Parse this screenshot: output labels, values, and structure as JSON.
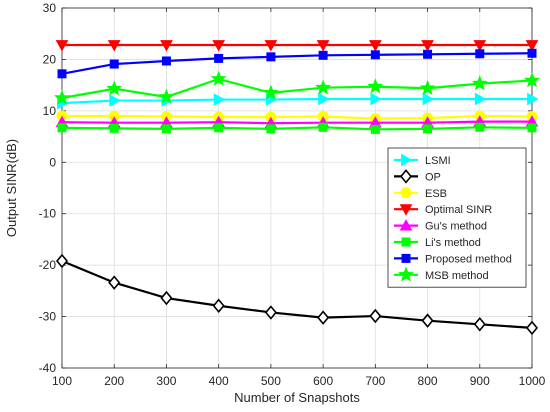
{
  "chart_data": {
    "type": "line",
    "title": "",
    "xlabel": "Number of Snapshots",
    "ylabel": "Output SINR(dB)",
    "x": [
      100,
      200,
      300,
      400,
      500,
      600,
      700,
      800,
      900,
      1000
    ],
    "xlim": [
      100,
      1000
    ],
    "ylim": [
      -40,
      30
    ],
    "xticks": [
      "100",
      "200",
      "300",
      "400",
      "500",
      "600",
      "700",
      "800",
      "900",
      "1000"
    ],
    "yticks": [
      "-40",
      "-30",
      "-20",
      "-10",
      "0",
      "10",
      "20",
      "30"
    ],
    "grid": true,
    "legend_position": "right",
    "series": [
      {
        "name": "LSMI",
        "color": "#00ffff",
        "marker": "triangle-right",
        "values": [
          11.5,
          12.0,
          12.0,
          12.2,
          12.2,
          12.3,
          12.3,
          12.3,
          12.3,
          12.3
        ]
      },
      {
        "name": "OP",
        "color": "#000000",
        "marker": "diamond",
        "values": [
          -19.2,
          -23.4,
          -26.4,
          -27.9,
          -29.2,
          -30.2,
          -29.9,
          -30.8,
          -31.5,
          -32.2
        ]
      },
      {
        "name": "ESB",
        "color": "#ffff00",
        "marker": "circle",
        "values": [
          9.0,
          9.0,
          8.9,
          8.8,
          8.8,
          8.9,
          8.5,
          8.6,
          9.0,
          8.9
        ]
      },
      {
        "name": "Optimal SINR",
        "color": "#ff0000",
        "marker": "triangle-down",
        "values": [
          22.8,
          22.8,
          22.8,
          22.8,
          22.8,
          22.8,
          22.8,
          22.8,
          22.8,
          22.8
        ]
      },
      {
        "name": "Gu's method",
        "color": "#ff00ff",
        "marker": "triangle-up",
        "values": [
          7.8,
          7.7,
          7.7,
          7.8,
          7.6,
          7.7,
          7.7,
          7.7,
          7.9,
          7.9
        ]
      },
      {
        "name": "Li's method",
        "color": "#00ff00",
        "marker": "square",
        "values": [
          6.7,
          6.6,
          6.5,
          6.7,
          6.5,
          6.8,
          6.4,
          6.5,
          6.8,
          6.7
        ]
      },
      {
        "name": "Proposed method",
        "color": "#0000ff",
        "marker": "square",
        "values": [
          17.2,
          19.1,
          19.7,
          20.2,
          20.5,
          20.8,
          20.9,
          21.0,
          21.1,
          21.2
        ]
      },
      {
        "name": "MSB method",
        "color": "#00ff00",
        "marker": "star",
        "values": [
          12.5,
          14.3,
          12.7,
          16.2,
          13.5,
          14.5,
          14.7,
          14.4,
          15.3,
          15.9
        ]
      }
    ]
  }
}
